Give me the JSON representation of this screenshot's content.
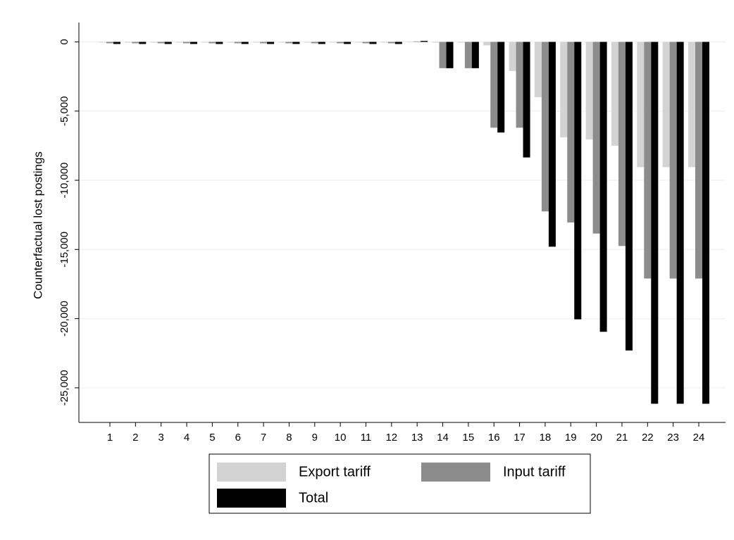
{
  "chart_data": {
    "type": "bar",
    "y_label": "Counterfactual lost postings",
    "categories": [
      "1",
      "2",
      "3",
      "4",
      "5",
      "6",
      "7",
      "8",
      "9",
      "10",
      "11",
      "12",
      "13",
      "14",
      "15",
      "16",
      "17",
      "18",
      "19",
      "20",
      "21",
      "22",
      "23",
      "24"
    ],
    "series": [
      {
        "name": "Export tariff",
        "color": "#d3d3d3",
        "values": [
          -50,
          -50,
          -50,
          -50,
          -50,
          -50,
          -50,
          -50,
          -50,
          -50,
          -50,
          -50,
          30,
          -50,
          -50,
          -250,
          -2100,
          -4000,
          -6900,
          -7050,
          -7500,
          -9050,
          -9050,
          -9050
        ]
      },
      {
        "name": "Input tariff",
        "color": "#8c8c8c",
        "values": [
          -100,
          -100,
          -100,
          -100,
          -100,
          -100,
          -100,
          -100,
          -100,
          -100,
          -100,
          -100,
          40,
          -1900,
          -1900,
          -6200,
          -6200,
          -12250,
          -13050,
          -13850,
          -14750,
          -17100,
          -17100,
          -17100
        ]
      },
      {
        "name": "Total",
        "color": "#000000",
        "values": [
          -150,
          -150,
          -150,
          -150,
          -150,
          -150,
          -150,
          -150,
          -150,
          -150,
          -150,
          -150,
          70,
          -1900,
          -1900,
          -6550,
          -8350,
          -14800,
          -20050,
          -20950,
          -22300,
          -26150,
          -26150,
          -26150
        ]
      }
    ],
    "ylim": [
      -27500,
      1400
    ],
    "yticks": [
      0,
      {
        "value": -5000,
        "label": "-5,000"
      },
      {
        "value": -10000,
        "label": "-10,000"
      },
      {
        "value": -15000,
        "label": "-15,000"
      },
      {
        "value": -20000,
        "label": "-20,000"
      },
      {
        "value": -25000,
        "label": "-25,000"
      }
    ],
    "grid": true
  }
}
